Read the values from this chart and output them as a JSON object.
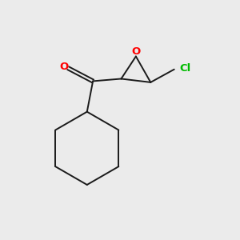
{
  "background_color": "#ebebeb",
  "bond_color": "#1a1a1a",
  "oxygen_color": "#ff0000",
  "chlorine_color": "#00bb00",
  "carbonyl_O_label": "O",
  "epoxide_O_label": "O",
  "Cl_label": "Cl",
  "line_width": 1.4,
  "font_size": 9.5,
  "fig_size": [
    3.0,
    3.0
  ],
  "dpi": 100,
  "xlim": [
    0,
    10
  ],
  "ylim": [
    0,
    10
  ]
}
